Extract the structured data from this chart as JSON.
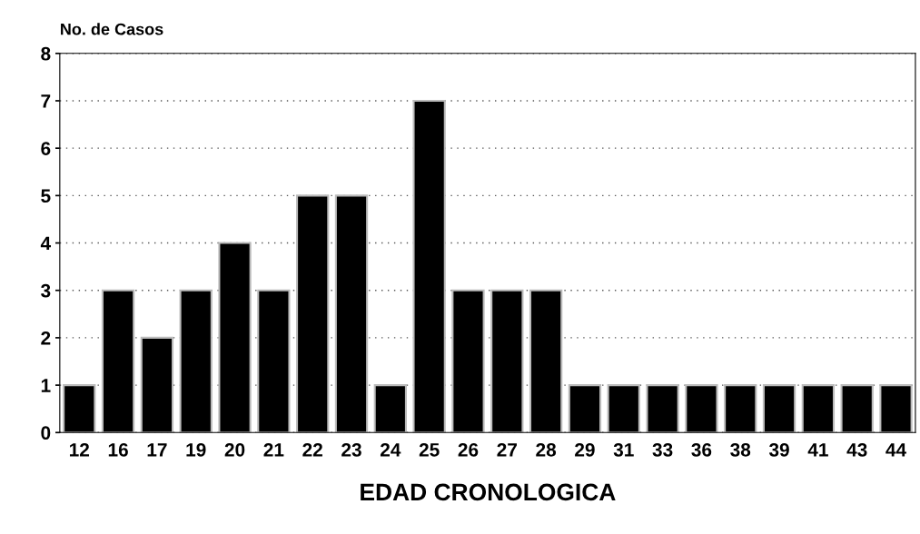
{
  "chart_data": {
    "type": "bar",
    "ylabel": "No. de Casos",
    "xlabel": "EDAD CRONOLOGICA",
    "categories": [
      "12",
      "16",
      "17",
      "19",
      "20",
      "21",
      "22",
      "23",
      "24",
      "25",
      "26",
      "27",
      "28",
      "29",
      "31",
      "33",
      "36",
      "38",
      "39",
      "41",
      "43",
      "44"
    ],
    "values": [
      1,
      3,
      2,
      3,
      4,
      3,
      5,
      5,
      1,
      7,
      3,
      3,
      3,
      1,
      1,
      1,
      1,
      1,
      1,
      1,
      1,
      1
    ],
    "color": "#000000",
    "ylim": [
      0,
      8
    ],
    "yticks": [
      0,
      1,
      2,
      3,
      4,
      5,
      6,
      7,
      8
    ],
    "grid": "y"
  }
}
